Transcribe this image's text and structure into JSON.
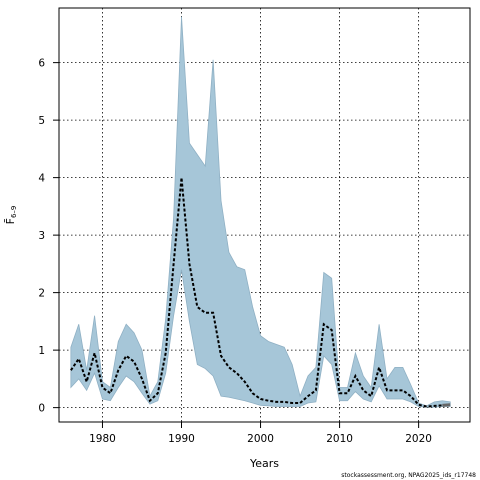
{
  "chart_data": {
    "type": "line",
    "xlabel": "Years",
    "ylabel": "F̄",
    "ylabel_subscript": "6–9",
    "credit": "stockassessment.org, NPAG2025_ids_r17748",
    "xlim": [
      1974.5,
      2026.5
    ],
    "ylim": [
      -0.25,
      6.95
    ],
    "x_ticks": [
      1980,
      1990,
      2000,
      2010,
      2020
    ],
    "y_ticks": [
      0,
      1,
      2,
      3,
      4,
      5,
      6
    ],
    "grid": true,
    "band_color": "#a6c6d8",
    "band_edge_color": "#8fb0c4",
    "line_color": "#000000",
    "series": [
      {
        "years": [
          1976,
          1977,
          1978,
          1979,
          1980,
          1981,
          1982,
          1983,
          1984,
          1985,
          1986,
          1987,
          1988,
          1989,
          1990,
          1991,
          1992,
          1993,
          1994,
          1995,
          1996,
          1997,
          1998,
          1999,
          2000,
          2001,
          2002,
          2003,
          2004,
          2005,
          2006,
          2007,
          2008,
          2009,
          2010,
          2011,
          2012,
          2013,
          2014,
          2015,
          2016,
          2017,
          2018,
          2019,
          2020,
          2021,
          2022,
          2023,
          2024
        ],
        "estimate": [
          0.65,
          0.85,
          0.45,
          0.95,
          0.35,
          0.25,
          0.65,
          0.9,
          0.8,
          0.5,
          0.12,
          0.25,
          0.95,
          2.5,
          4.0,
          2.5,
          1.75,
          1.65,
          1.65,
          0.9,
          0.7,
          0.6,
          0.45,
          0.25,
          0.15,
          0.12,
          0.1,
          0.1,
          0.08,
          0.08,
          0.2,
          0.3,
          1.45,
          1.35,
          0.25,
          0.25,
          0.55,
          0.3,
          0.2,
          0.7,
          0.3,
          0.3,
          0.3,
          0.2,
          0.05,
          0.02,
          0.03,
          0.04,
          0.05
        ],
        "upper": [
          1.05,
          1.45,
          0.65,
          1.6,
          0.45,
          0.35,
          1.15,
          1.45,
          1.3,
          1.0,
          0.2,
          0.45,
          1.55,
          3.3,
          6.8,
          4.6,
          4.4,
          4.2,
          6.05,
          3.6,
          2.7,
          2.45,
          2.4,
          1.75,
          1.25,
          1.15,
          1.1,
          1.05,
          0.75,
          0.2,
          0.55,
          0.7,
          2.35,
          2.25,
          0.35,
          0.35,
          0.95,
          0.55,
          0.35,
          1.45,
          0.5,
          0.7,
          0.7,
          0.4,
          0.08,
          0.03,
          0.1,
          0.12,
          0.1
        ],
        "lower": [
          0.35,
          0.5,
          0.3,
          0.6,
          0.15,
          0.12,
          0.35,
          0.55,
          0.45,
          0.25,
          0.06,
          0.12,
          0.6,
          1.6,
          2.4,
          1.5,
          0.75,
          0.68,
          0.55,
          0.2,
          0.18,
          0.15,
          0.12,
          0.08,
          0.04,
          0.03,
          0.02,
          0.02,
          0.02,
          0.02,
          0.08,
          0.1,
          0.9,
          0.75,
          0.12,
          0.12,
          0.28,
          0.15,
          0.1,
          0.38,
          0.15,
          0.15,
          0.15,
          0.1,
          0.02,
          0.01,
          0.01,
          0.02,
          0.02
        ]
      }
    ],
    "final_segment_color": "#666666"
  }
}
